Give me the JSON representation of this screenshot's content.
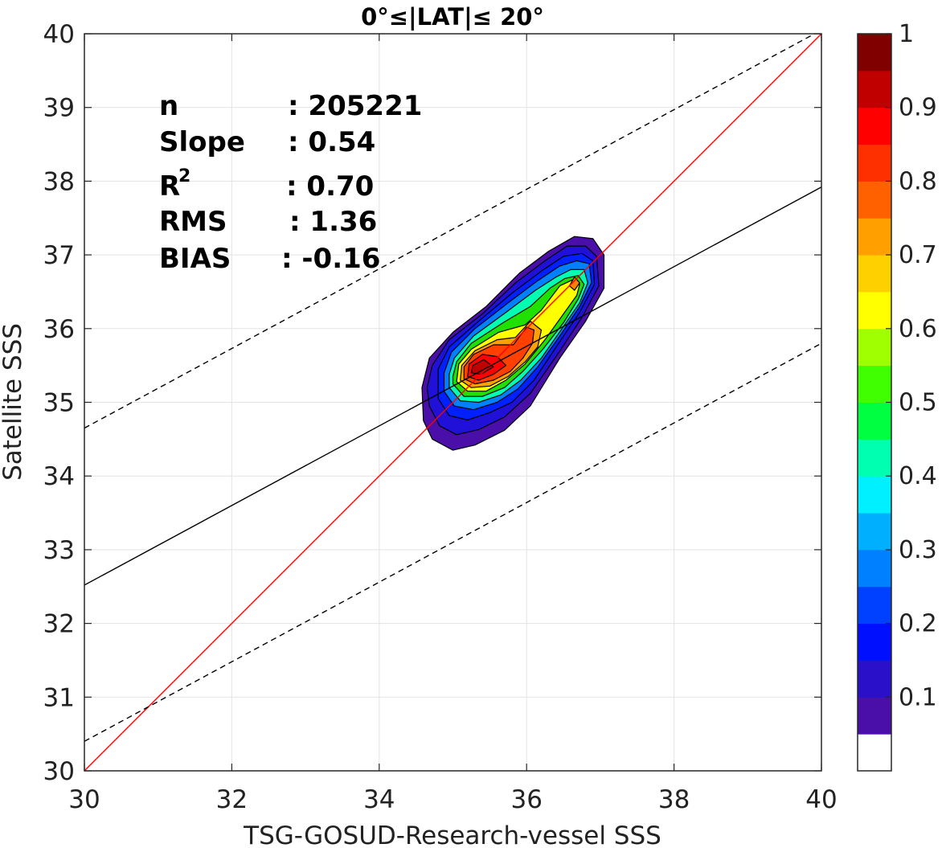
{
  "chart_data": {
    "type": "scatter",
    "subtype": "filled-density-contour",
    "title": "0°≤|LAT|≤ 20°",
    "xlabel": "TSG-GOSUD-Research-vessel SSS",
    "ylabel": "Satellite SSS",
    "xlim": [
      30,
      40
    ],
    "ylim": [
      30,
      40
    ],
    "xticks": [
      30,
      32,
      34,
      36,
      38,
      40
    ],
    "xtick_labels": [
      "30",
      "32",
      "34",
      "36",
      "38",
      "40"
    ],
    "yticks": [
      30,
      31,
      32,
      33,
      34,
      35,
      36,
      37,
      38,
      39,
      40
    ],
    "ytick_labels": [
      "30",
      "31",
      "32",
      "33",
      "34",
      "35",
      "36",
      "37",
      "38",
      "39",
      "40"
    ],
    "grid": true,
    "stats": {
      "n_label": "n",
      "n_value": ": 205221",
      "slope_label": "Slope",
      "slope_value": ": 0.54",
      "r2_label": "R",
      "r2_sup": "2",
      "r2_value": ": 0.70",
      "rms_label": "RMS",
      "rms_value": ": 1.36",
      "bias_label": "BIAS",
      "bias_value": ": -0.16"
    },
    "lines": [
      {
        "name": "identity",
        "style": "solid",
        "color": "#ff0000",
        "points": [
          [
            30,
            30
          ],
          [
            40,
            40
          ]
        ]
      },
      {
        "name": "fit",
        "style": "solid",
        "color": "#000000",
        "points": [
          [
            30,
            32.52
          ],
          [
            40,
            37.92
          ]
        ]
      },
      {
        "name": "upper-bound",
        "style": "dashed",
        "color": "#000000",
        "points": [
          [
            30,
            34.65
          ],
          [
            40,
            40.05
          ]
        ]
      },
      {
        "name": "lower-bound",
        "style": "dashed",
        "color": "#000000",
        "points": [
          [
            30,
            30.4
          ],
          [
            40,
            35.8
          ]
        ]
      }
    ],
    "density_levels": [
      {
        "level": 0.05,
        "color": "#4a0fa8",
        "points": [
          [
            34.6,
            34.75
          ],
          [
            34.72,
            34.5
          ],
          [
            35.0,
            34.35
          ],
          [
            35.3,
            34.42
          ],
          [
            35.7,
            34.62
          ],
          [
            36.05,
            34.95
          ],
          [
            36.45,
            35.6
          ],
          [
            36.8,
            36.1
          ],
          [
            37.05,
            36.55
          ],
          [
            37.05,
            37.0
          ],
          [
            36.9,
            37.22
          ],
          [
            36.65,
            37.25
          ],
          [
            36.3,
            37.05
          ],
          [
            35.9,
            36.75
          ],
          [
            35.45,
            36.3
          ],
          [
            35.0,
            35.95
          ],
          [
            34.68,
            35.6
          ],
          [
            34.58,
            35.2
          ]
        ]
      },
      {
        "level": 0.1,
        "color": "#2010d8",
        "points": [
          [
            34.68,
            34.95
          ],
          [
            34.82,
            34.68
          ],
          [
            35.05,
            34.56
          ],
          [
            35.35,
            34.63
          ],
          [
            35.7,
            34.8
          ],
          [
            36.05,
            35.12
          ],
          [
            36.42,
            35.65
          ],
          [
            36.75,
            36.15
          ],
          [
            36.98,
            36.58
          ],
          [
            36.95,
            36.98
          ],
          [
            36.8,
            37.12
          ],
          [
            36.55,
            37.12
          ],
          [
            36.25,
            36.92
          ],
          [
            35.85,
            36.62
          ],
          [
            35.4,
            36.2
          ],
          [
            34.95,
            35.85
          ],
          [
            34.72,
            35.5
          ],
          [
            34.65,
            35.2
          ]
        ]
      },
      {
        "level": 0.2,
        "color": "#0020ff",
        "points": [
          [
            34.8,
            35.05
          ],
          [
            34.95,
            34.82
          ],
          [
            35.2,
            34.76
          ],
          [
            35.5,
            34.86
          ],
          [
            35.8,
            35.0
          ],
          [
            36.1,
            35.3
          ],
          [
            36.42,
            35.78
          ],
          [
            36.72,
            36.22
          ],
          [
            36.92,
            36.6
          ],
          [
            36.9,
            36.92
          ],
          [
            36.75,
            37.02
          ],
          [
            36.5,
            36.98
          ],
          [
            36.2,
            36.78
          ],
          [
            35.8,
            36.48
          ],
          [
            35.35,
            36.1
          ],
          [
            34.95,
            35.75
          ],
          [
            34.8,
            35.45
          ]
        ]
      },
      {
        "level": 0.3,
        "color": "#0080ff",
        "points": [
          [
            34.88,
            35.15
          ],
          [
            35.02,
            34.95
          ],
          [
            35.28,
            34.9
          ],
          [
            35.6,
            35.0
          ],
          [
            35.88,
            35.18
          ],
          [
            36.15,
            35.48
          ],
          [
            36.45,
            35.9
          ],
          [
            36.72,
            36.3
          ],
          [
            36.88,
            36.62
          ],
          [
            36.85,
            36.88
          ],
          [
            36.68,
            36.92
          ],
          [
            36.45,
            36.85
          ],
          [
            36.15,
            36.65
          ],
          [
            35.75,
            36.35
          ],
          [
            35.3,
            36.0
          ],
          [
            34.98,
            35.68
          ],
          [
            34.88,
            35.4
          ]
        ]
      },
      {
        "level": 0.4,
        "color": "#00ffb0",
        "points": [
          [
            34.95,
            35.2
          ],
          [
            35.1,
            35.02
          ],
          [
            35.35,
            35.0
          ],
          [
            35.65,
            35.1
          ],
          [
            35.92,
            35.3
          ],
          [
            36.2,
            35.6
          ],
          [
            36.48,
            36.0
          ],
          [
            36.72,
            36.35
          ],
          [
            36.83,
            36.62
          ],
          [
            36.78,
            36.8
          ],
          [
            36.6,
            36.8
          ],
          [
            36.4,
            36.7
          ],
          [
            36.12,
            36.52
          ],
          [
            35.72,
            36.22
          ],
          [
            35.28,
            35.9
          ],
          [
            35.02,
            35.6
          ],
          [
            34.95,
            35.38
          ]
        ]
      },
      {
        "level": 0.5,
        "color": "#20e000",
        "points": [
          [
            35.0,
            35.25
          ],
          [
            35.15,
            35.08
          ],
          [
            35.4,
            35.08
          ],
          [
            35.7,
            35.2
          ],
          [
            35.95,
            35.42
          ],
          [
            36.22,
            35.72
          ],
          [
            36.5,
            36.08
          ],
          [
            36.7,
            36.4
          ],
          [
            36.78,
            36.6
          ],
          [
            36.7,
            36.72
          ],
          [
            36.52,
            36.68
          ],
          [
            36.32,
            36.55
          ],
          [
            36.05,
            36.3
          ],
          [
            35.68,
            36.08
          ],
          [
            35.25,
            35.8
          ],
          [
            35.05,
            35.55
          ],
          [
            35.0,
            35.35
          ]
        ]
      },
      {
        "level": 0.6,
        "color": "#ffff00",
        "points": [
          [
            35.05,
            35.28
          ],
          [
            35.2,
            35.15
          ],
          [
            35.45,
            35.15
          ],
          [
            35.72,
            35.3
          ],
          [
            35.98,
            35.52
          ],
          [
            36.25,
            35.85
          ],
          [
            36.5,
            36.2
          ],
          [
            36.68,
            36.45
          ],
          [
            36.72,
            36.6
          ],
          [
            36.62,
            36.66
          ],
          [
            36.45,
            36.58
          ],
          [
            36.2,
            36.25
          ],
          [
            35.98,
            36.05
          ],
          [
            35.62,
            35.95
          ],
          [
            35.25,
            35.72
          ],
          [
            35.08,
            35.52
          ]
        ]
      },
      {
        "level": 0.7,
        "color": "#ffa000",
        "points": [
          [
            35.1,
            35.3
          ],
          [
            35.25,
            35.2
          ],
          [
            35.5,
            35.22
          ],
          [
            35.75,
            35.35
          ],
          [
            35.98,
            35.55
          ],
          [
            36.15,
            35.75
          ],
          [
            36.2,
            35.98
          ],
          [
            36.05,
            36.1
          ],
          [
            35.85,
            35.88
          ],
          [
            35.6,
            35.85
          ],
          [
            35.3,
            35.7
          ],
          [
            35.12,
            35.5
          ]
        ]
      },
      {
        "level": 0.8,
        "color": "#ff4000",
        "points": [
          [
            35.15,
            35.32
          ],
          [
            35.3,
            35.25
          ],
          [
            35.55,
            35.3
          ],
          [
            35.78,
            35.42
          ],
          [
            35.95,
            35.6
          ],
          [
            36.08,
            35.8
          ],
          [
            36.1,
            35.98
          ],
          [
            36.0,
            36.02
          ],
          [
            35.82,
            35.78
          ],
          [
            35.55,
            35.78
          ],
          [
            35.28,
            35.65
          ],
          [
            35.15,
            35.48
          ]
        ]
      },
      {
        "level": 0.9,
        "color": "#ff0000",
        "points": [
          [
            35.2,
            35.35
          ],
          [
            35.35,
            35.3
          ],
          [
            35.55,
            35.38
          ],
          [
            35.72,
            35.5
          ],
          [
            35.6,
            35.62
          ],
          [
            35.4,
            35.65
          ],
          [
            35.22,
            35.52
          ]
        ]
      },
      {
        "level": 0.95,
        "color": "#c00000",
        "points": [
          [
            35.25,
            35.4
          ],
          [
            35.38,
            35.38
          ],
          [
            35.55,
            35.48
          ],
          [
            35.42,
            35.58
          ],
          [
            35.27,
            35.5
          ]
        ]
      }
    ],
    "peak_marker": {
      "points": [
        [
          36.58,
          36.58
        ],
        [
          36.65,
          36.52
        ],
        [
          36.72,
          36.62
        ],
        [
          36.65,
          36.7
        ]
      ],
      "color": "#ff8000"
    },
    "colorbar": {
      "range": [
        0,
        1
      ],
      "colors": [
        "#ffffff",
        "#4a0fa8",
        "#2a10c8",
        "#0010ff",
        "#0040ff",
        "#0080ff",
        "#00b0ff",
        "#00f0ff",
        "#00ffb0",
        "#00ff40",
        "#40ff00",
        "#a0ff00",
        "#ffff00",
        "#ffd000",
        "#ffa000",
        "#ff6000",
        "#ff3000",
        "#ff0000",
        "#c00000",
        "#800000"
      ],
      "tick_values": [
        0.1,
        0.2,
        0.3,
        0.4,
        0.5,
        0.6,
        0.7,
        0.8,
        0.9,
        1.0
      ],
      "tick_labels": [
        "0.1",
        "0.2",
        "0.3",
        "0.4",
        "0.5",
        "0.6",
        "0.7",
        "0.8",
        "0.9",
        "1"
      ]
    }
  }
}
